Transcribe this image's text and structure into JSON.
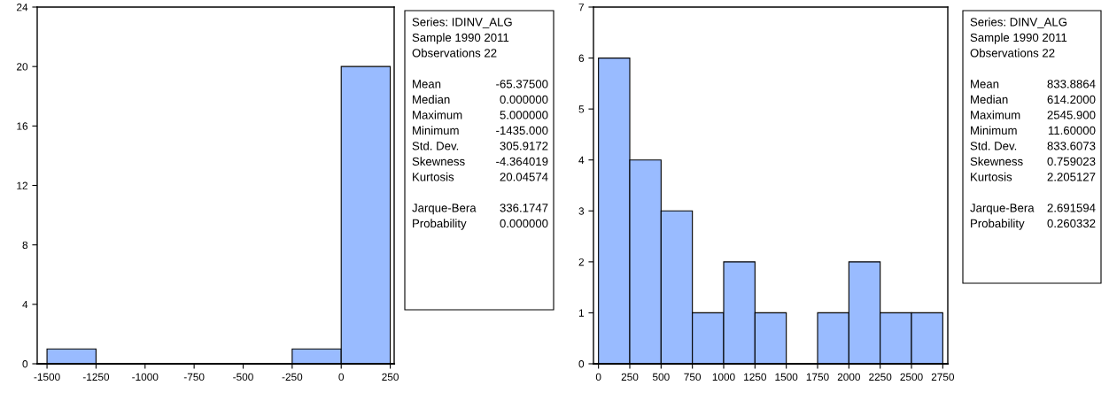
{
  "chart_data": [
    {
      "type": "histogram",
      "bins": [
        -1500,
        -1250,
        -1000,
        -750,
        -500,
        -250,
        0,
        250
      ],
      "values": [
        1,
        0,
        0,
        0,
        0,
        1,
        20
      ],
      "color": "#99bbff",
      "xlim": [
        -1550,
        270
      ],
      "xticks": [
        -1500,
        -1250,
        -1000,
        -750,
        -500,
        -250,
        0,
        250
      ],
      "ylim": [
        0,
        24
      ],
      "yticks": [
        0,
        4,
        8,
        12,
        16,
        20,
        24
      ],
      "grid": false,
      "annotations": [
        "Series: IDINV_ALG",
        "Sample 1990 2011",
        "Observations 22",
        "Mean",
        "-65.37500",
        "Median",
        "0.000000",
        "Maximum",
        "5.000000",
        "Minimum",
        "-1435.000",
        "Std. Dev.",
        "305.9172",
        "Skewness",
        "-4.364019",
        "Kurtosis",
        "20.04574",
        "Jarque-Bera",
        "336.1747",
        "Probability",
        "0.000000"
      ]
    },
    {
      "type": "histogram",
      "bins": [
        0,
        250,
        500,
        750,
        1000,
        1250,
        1500,
        1750,
        2000,
        2250,
        2500,
        2750
      ],
      "values": [
        6,
        4,
        3,
        1,
        2,
        1,
        0,
        1,
        2,
        1,
        1
      ],
      "color": "#99bbff",
      "xlim": [
        -40,
        2790
      ],
      "xticks": [
        0,
        250,
        500,
        750,
        1000,
        1250,
        1500,
        1750,
        2000,
        2250,
        2500,
        2750
      ],
      "ylim": [
        0,
        7
      ],
      "yticks": [
        0,
        1,
        2,
        3,
        4,
        5,
        6,
        7
      ],
      "grid": false,
      "annotations": [
        "Series: DINV_ALG",
        "Sample 1990 2011",
        "Observations 22",
        "Mean",
        "833.8864",
        "Median",
        "614.2000",
        "Maximum",
        "2545.900",
        "Minimum",
        "11.60000",
        "Std. Dev.",
        "833.6073",
        "Skewness",
        "0.759023",
        "Kurtosis",
        "2.205127",
        "Jarque-Bera",
        "2.691594",
        "Probability",
        "0.260332"
      ]
    }
  ]
}
